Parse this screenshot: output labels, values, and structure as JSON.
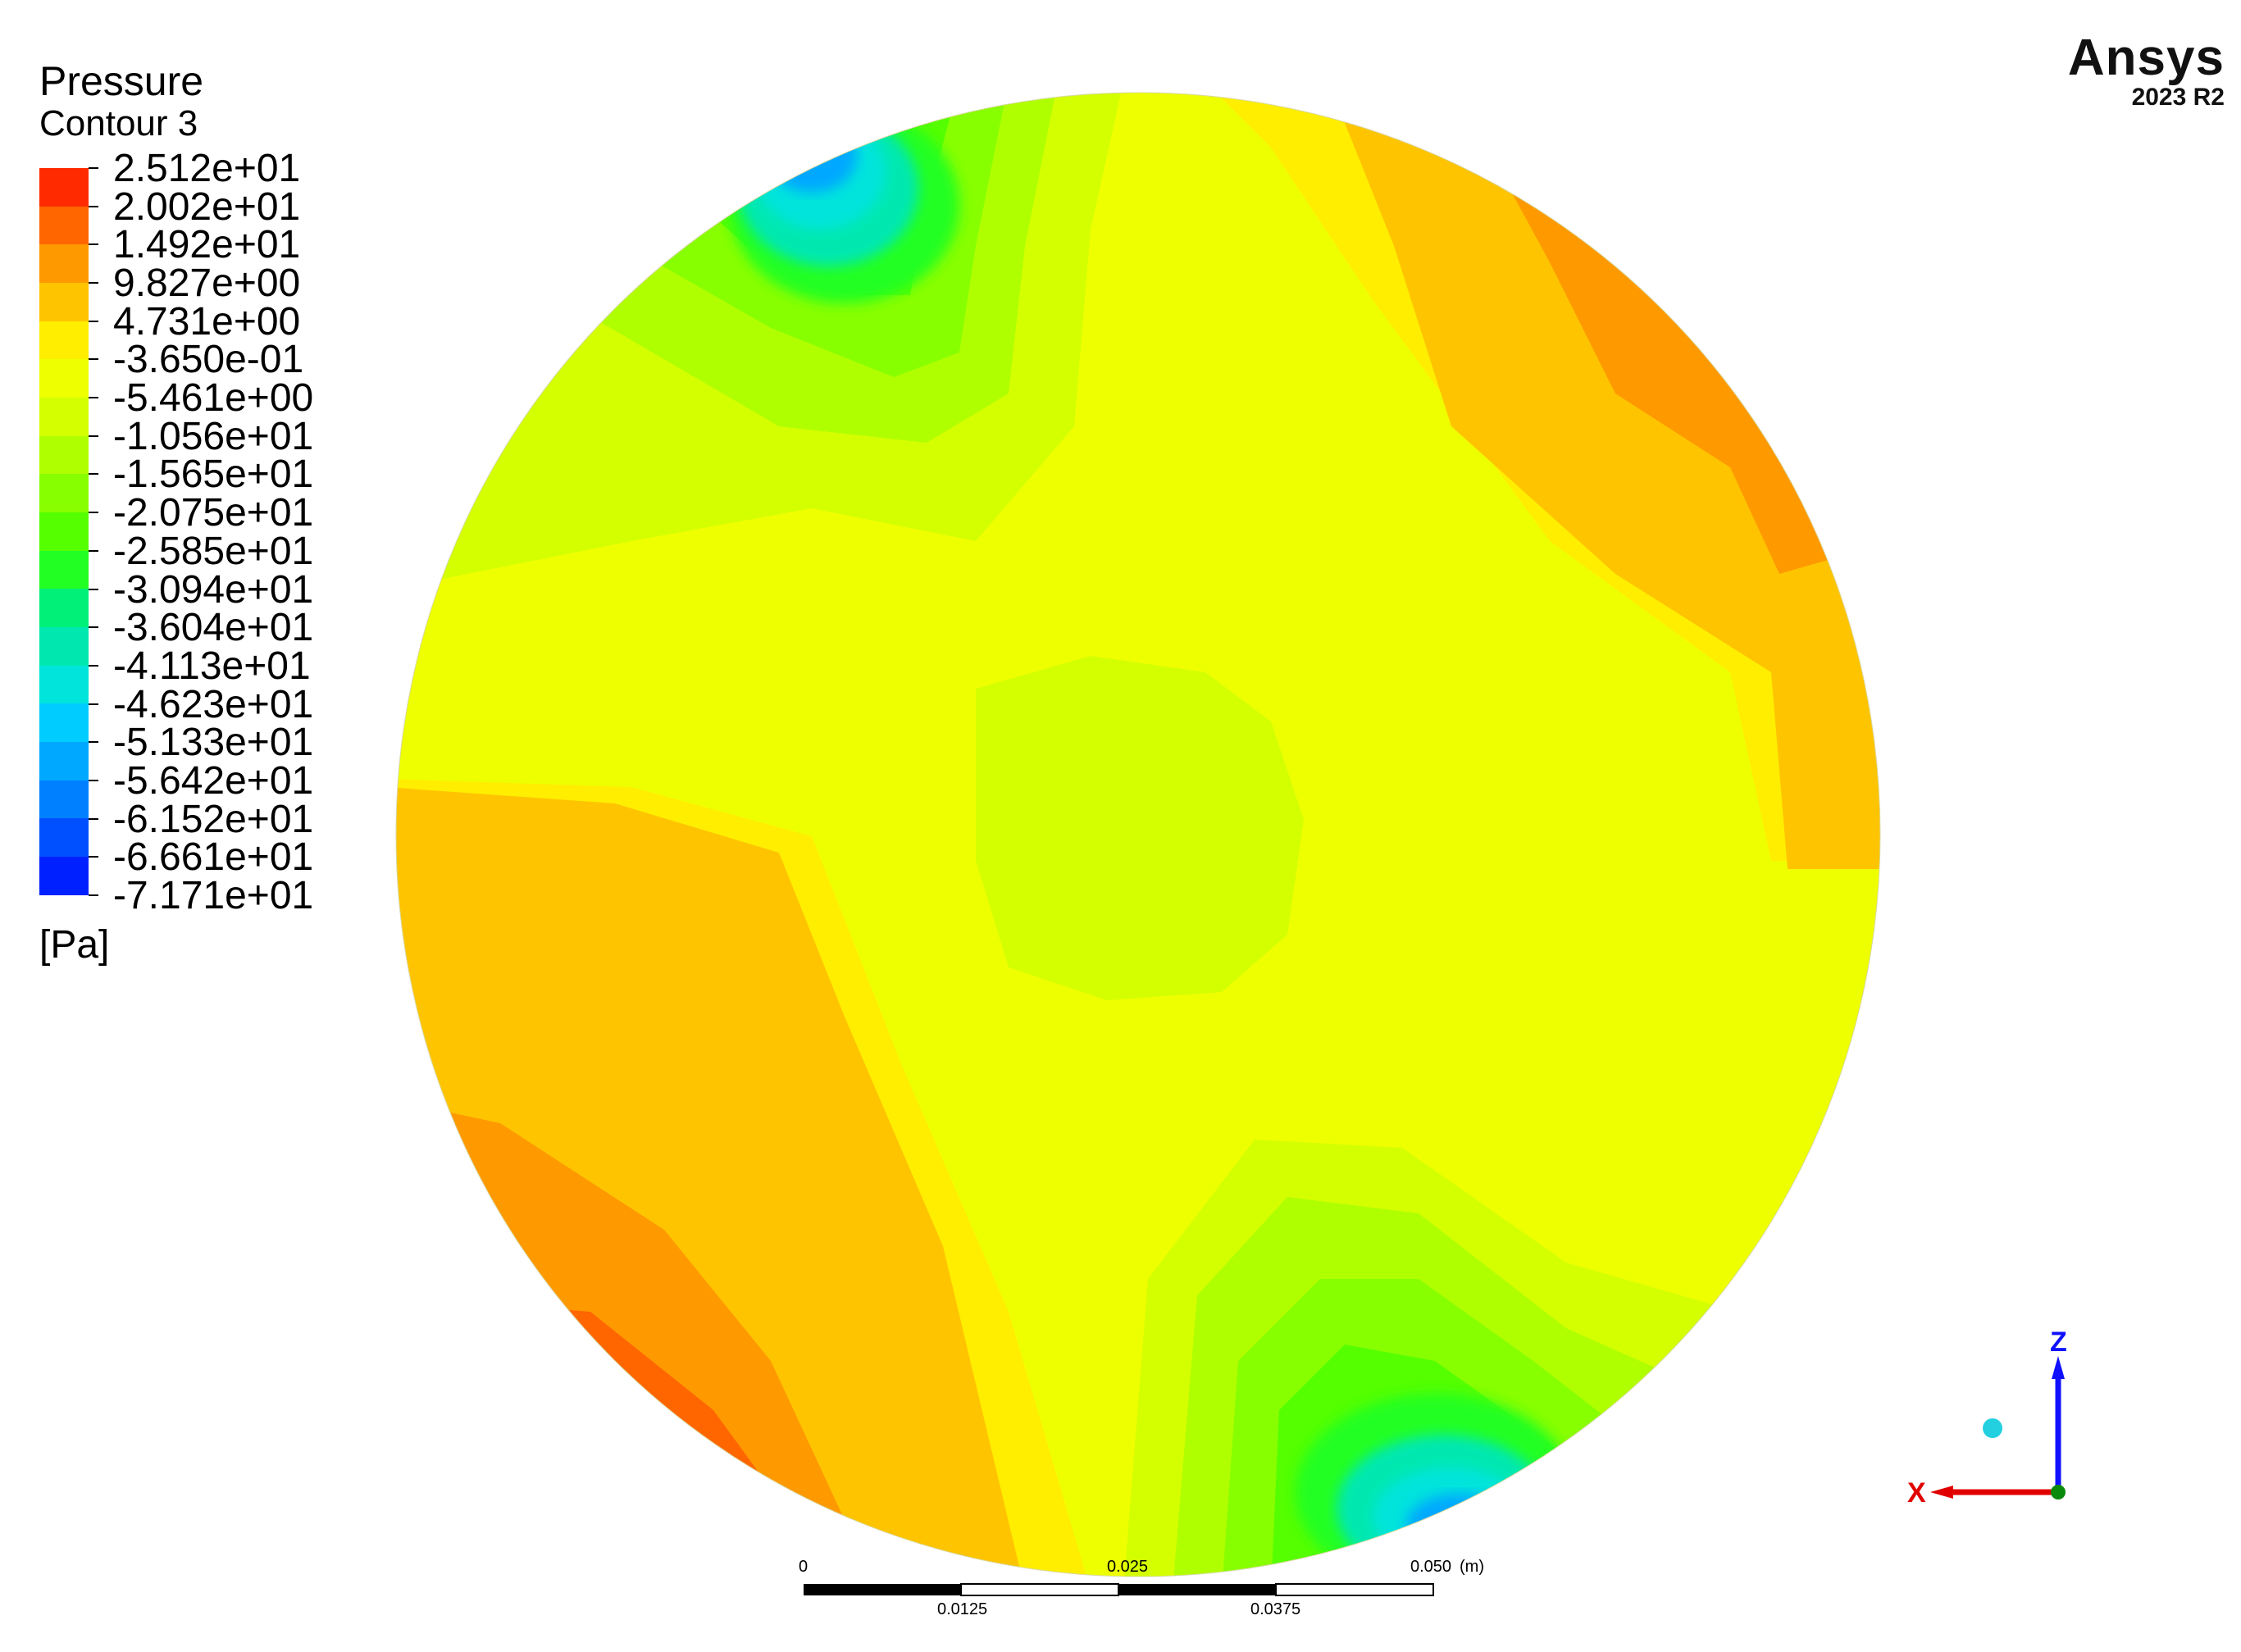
{
  "legend": {
    "title": "Pressure",
    "subtitle": "Contour 3",
    "unit": "[Pa]",
    "levels": [
      "2.512e+01",
      "2.002e+01",
      "1.492e+01",
      "9.827e+00",
      "4.731e+00",
      "-3.650e-01",
      "-5.461e+00",
      "-1.056e+01",
      "-1.565e+01",
      "-2.075e+01",
      "-2.585e+01",
      "-3.094e+01",
      "-3.604e+01",
      "-4.113e+01",
      "-4.623e+01",
      "-5.133e+01",
      "-5.642e+01",
      "-6.152e+01",
      "-6.661e+01",
      "-7.171e+01"
    ],
    "colors": [
      "#ff2a00",
      "#ff6600",
      "#ff9900",
      "#ffc400",
      "#ffee00",
      "#eeff00",
      "#d4ff00",
      "#b0ff00",
      "#88ff00",
      "#55ff00",
      "#22ff22",
      "#00f078",
      "#00e8b0",
      "#00e4dc",
      "#00ccff",
      "#00a8ff",
      "#0080ff",
      "#0050ff",
      "#0020ff"
    ]
  },
  "brand": {
    "name": "Ansys",
    "version": "2023 R2"
  },
  "scale_bar": {
    "top_labels": [
      "0",
      "0.025",
      "0.050"
    ],
    "bottom_labels": [
      "0.0125",
      "0.0375"
    ],
    "unit": "(m)"
  },
  "axes": {
    "vertical": "Z",
    "horizontal": "X"
  }
}
